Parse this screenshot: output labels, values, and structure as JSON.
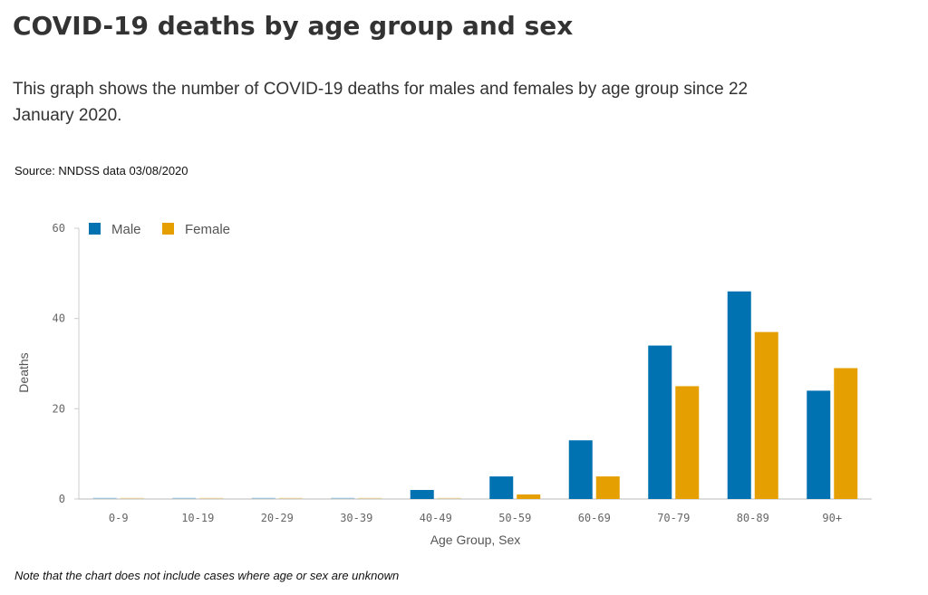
{
  "title": "COVID-19 deaths by age group and sex",
  "subtitle": "This graph shows the number of COVID-19 deaths for males and females by age group since 22 January 2020.",
  "source": "Source: NNDSS data 03/08/2020",
  "note": "Note that the chart does not include cases where age or sex are unknown",
  "chart_data": {
    "type": "bar",
    "xlabel": "Age Group, Sex",
    "ylabel": "Deaths",
    "ylim": [
      0,
      60
    ],
    "yticks": [
      0,
      20,
      40,
      60
    ],
    "grid": false,
    "legend_position": "top-left",
    "categories": [
      "0-9",
      "10-19",
      "20-29",
      "30-39",
      "40-49",
      "50-59",
      "60-69",
      "70-79",
      "80-89",
      "90+"
    ],
    "series": [
      {
        "name": "Male",
        "color": "#0072b2",
        "values": [
          0,
          0,
          0,
          0,
          2,
          5,
          13,
          34,
          46,
          24
        ]
      },
      {
        "name": "Female",
        "color": "#e69f00",
        "values": [
          0,
          0,
          0,
          0,
          0,
          1,
          5,
          25,
          37,
          29
        ]
      }
    ]
  }
}
